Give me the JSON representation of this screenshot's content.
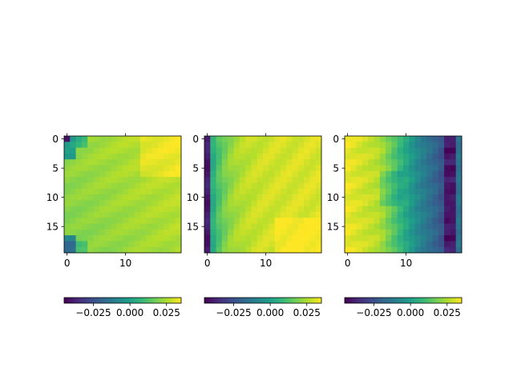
{
  "figure": {
    "background": "#ffffff",
    "colormap": "viridis",
    "colormap_stops": [
      "#440154",
      "#482878",
      "#3e4989",
      "#31688e",
      "#26828e",
      "#1f9e89",
      "#35b779",
      "#6ece58",
      "#b5de2b",
      "#fde725"
    ]
  },
  "chart_data": [
    {
      "type": "heatmap",
      "rows": 20,
      "cols": 20,
      "xticks": [
        0,
        10
      ],
      "yticks": [
        0,
        5,
        10,
        15
      ],
      "colorbar": {
        "vmin": -0.045,
        "vmax": 0.035,
        "ticks": [
          -0.025,
          0.0,
          0.025
        ],
        "tick_labels": [
          "−0.025",
          "0.000",
          "0.025"
        ]
      },
      "description": "mostly high values; low patch top-left corner, dip bottom-left, brightest top-right"
    },
    {
      "type": "heatmap",
      "rows": 20,
      "cols": 20,
      "xticks": [
        0,
        10
      ],
      "yticks": [
        0,
        5,
        10,
        15
      ],
      "colorbar": {
        "vmin": -0.045,
        "vmax": 0.035,
        "ticks": [
          -0.025,
          0.0,
          0.025
        ],
        "tick_labels": [
          "−0.025",
          "0.000",
          "0.025"
        ]
      },
      "description": "very low left column, rising to high values toward the right"
    },
    {
      "type": "heatmap",
      "rows": 20,
      "cols": 20,
      "xticks": [
        0,
        10
      ],
      "yticks": [
        0,
        5,
        10,
        15
      ],
      "colorbar": {
        "vmin": -0.045,
        "vmax": 0.035,
        "ticks": [
          -0.025,
          0.0,
          0.025
        ],
        "tick_labels": [
          "−0.025",
          "0.000",
          "0.025"
        ]
      },
      "description": "high values on the left, decreasing to the right, very low band at columns 17-18, mid value at column 19"
    }
  ]
}
